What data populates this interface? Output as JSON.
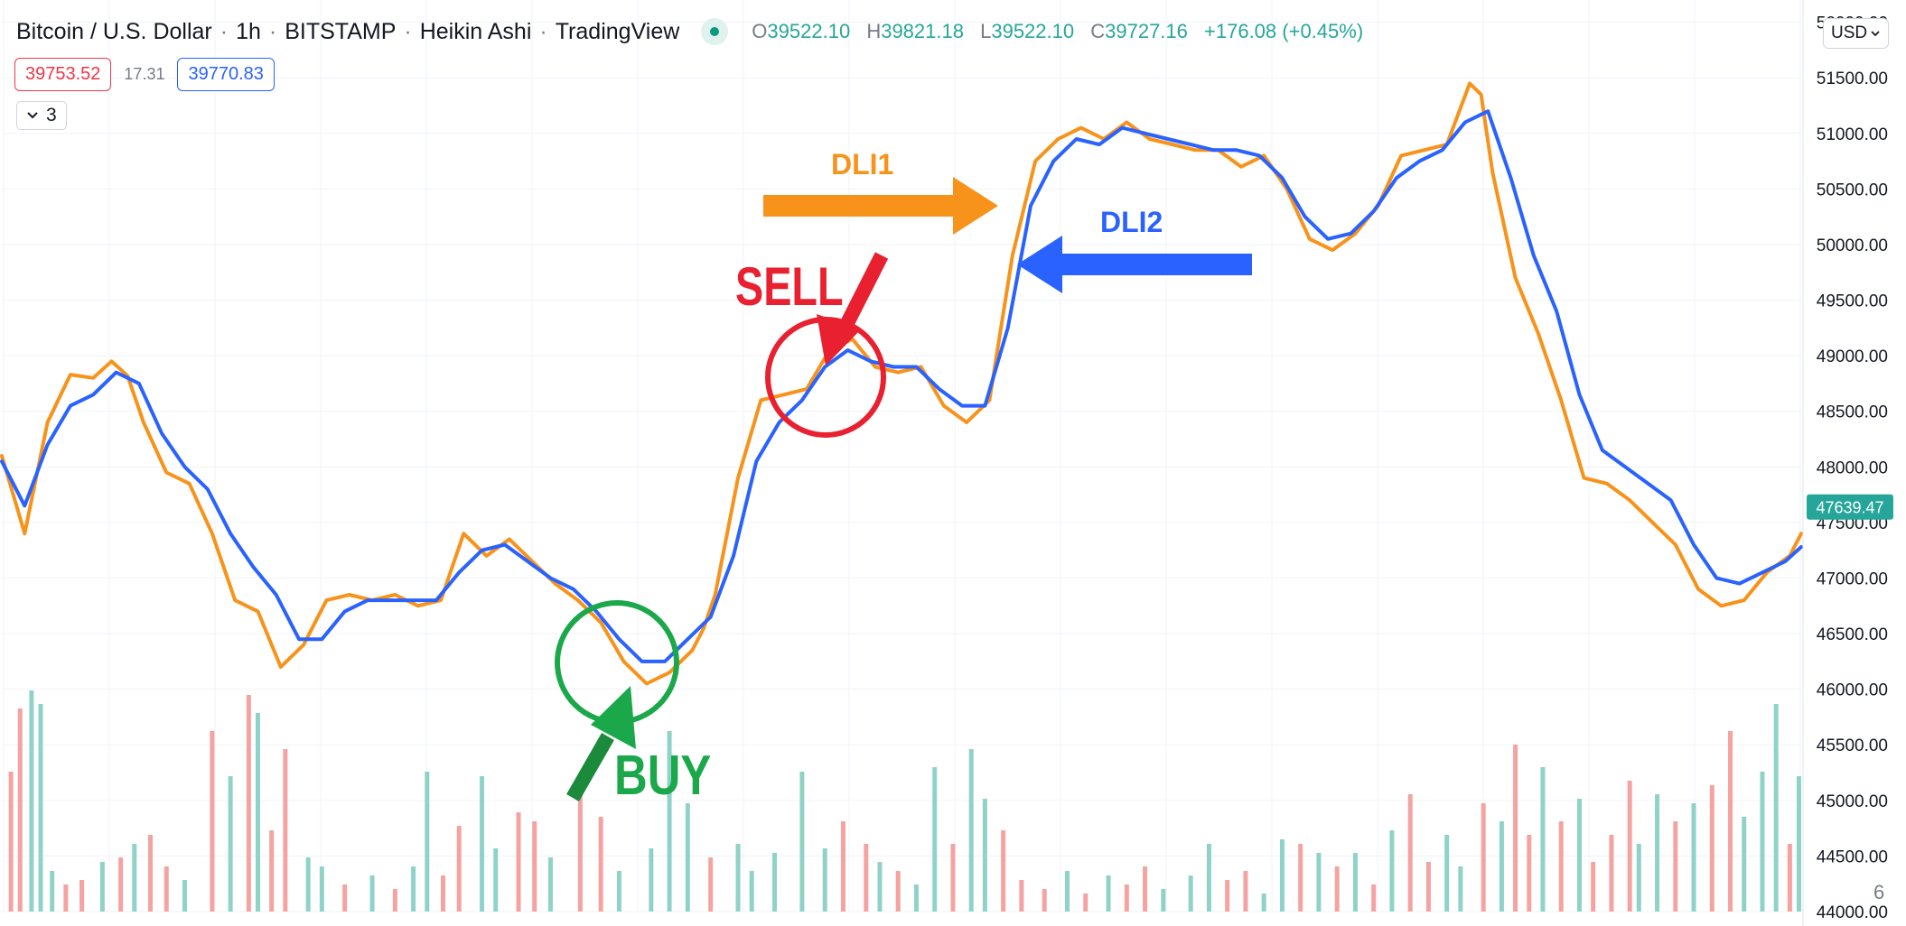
{
  "header": {
    "symbol": "Bitcoin / U.S. Dollar",
    "interval": "1h",
    "exchange": "BITSTAMP",
    "chart_style": "Heikin Ashi",
    "source": "TradingView",
    "status_icon": "live-market-dot-icon",
    "ohlc": {
      "o_label": "O",
      "o": "39522.10",
      "h_label": "H",
      "h": "39821.18",
      "l_label": "L",
      "l": "39522.10",
      "c_label": "C",
      "c": "39727.16",
      "change": "+176.08 (+0.45%)"
    }
  },
  "prices": {
    "sell": "39753.52",
    "spread": "17.31",
    "buy": "39770.83"
  },
  "indicators_toggle": {
    "count": "3",
    "icon": "chevron-down-icon"
  },
  "currency": {
    "label": "USD",
    "icon": "chevron-down-icon"
  },
  "pane_label": "6",
  "colors": {
    "dli1": "#f7931a",
    "dli2": "#2962ff",
    "current_price_bg": "#26a69a",
    "volume_up": "#8fd3c8",
    "volume_down": "#f4a3a1",
    "sell_annotation": "#e8202f",
    "buy_annotation": "#1aa84a",
    "grid": "#f0f3fa"
  },
  "chart_data": {
    "type": "line",
    "y_axis": {
      "ylim": [
        44000,
        52200
      ],
      "position": "right",
      "ticks": [
        "52000.00",
        "51500.00",
        "51000.00",
        "50500.00",
        "50000.00",
        "49500.00",
        "49000.00",
        "48500.00",
        "48000.00",
        "47500.00",
        "47000.00",
        "46500.00",
        "46000.00",
        "45500.00",
        "45000.00",
        "44500.00",
        "44000.00"
      ],
      "current_price_label": "47639.47",
      "current_price": 47639.47
    },
    "grid": true,
    "series": [
      {
        "name": "DLI1",
        "points": [
          [
            0,
            48100
          ],
          [
            10,
            47400
          ],
          [
            20,
            48400
          ],
          [
            30,
            48830
          ],
          [
            40,
            48800
          ],
          [
            48,
            48950
          ],
          [
            55,
            48820
          ],
          [
            62,
            48400
          ],
          [
            72,
            47950
          ],
          [
            82,
            47850
          ],
          [
            92,
            47400
          ],
          [
            102,
            46800
          ],
          [
            112,
            46700
          ],
          [
            122,
            46200
          ],
          [
            132,
            46400
          ],
          [
            142,
            46800
          ],
          [
            152,
            46850
          ],
          [
            162,
            46800
          ],
          [
            172,
            46850
          ],
          [
            182,
            46750
          ],
          [
            192,
            46800
          ],
          [
            202,
            47400
          ],
          [
            212,
            47200
          ],
          [
            222,
            47350
          ],
          [
            232,
            47150
          ],
          [
            242,
            46950
          ],
          [
            252,
            46800
          ],
          [
            262,
            46600
          ],
          [
            272,
            46250
          ],
          [
            282,
            46050
          ],
          [
            292,
            46150
          ],
          [
            302,
            46350
          ],
          [
            307,
            46550
          ],
          [
            312,
            46850
          ],
          [
            322,
            47900
          ],
          [
            332,
            48600
          ],
          [
            342,
            48650
          ],
          [
            352,
            48700
          ],
          [
            362,
            49050
          ],
          [
            372,
            49150
          ],
          [
            382,
            48900
          ],
          [
            392,
            48850
          ],
          [
            402,
            48900
          ],
          [
            412,
            48550
          ],
          [
            422,
            48400
          ],
          [
            432,
            48600
          ],
          [
            442,
            49900
          ],
          [
            452,
            50750
          ],
          [
            462,
            50950
          ],
          [
            472,
            51050
          ],
          [
            482,
            50950
          ],
          [
            492,
            51100
          ],
          [
            502,
            50950
          ],
          [
            512,
            50900
          ],
          [
            522,
            50850
          ],
          [
            532,
            50850
          ],
          [
            542,
            50700
          ],
          [
            552,
            50800
          ],
          [
            562,
            50500
          ],
          [
            572,
            50050
          ],
          [
            582,
            49950
          ],
          [
            592,
            50100
          ],
          [
            602,
            50350
          ],
          [
            612,
            50800
          ],
          [
            622,
            50850
          ],
          [
            632,
            50900
          ],
          [
            642,
            51450
          ],
          [
            647,
            51350
          ],
          [
            652,
            50650
          ],
          [
            662,
            49700
          ],
          [
            672,
            49200
          ],
          [
            682,
            48600
          ],
          [
            692,
            47900
          ],
          [
            702,
            47850
          ],
          [
            712,
            47700
          ],
          [
            722,
            47500
          ],
          [
            732,
            47300
          ],
          [
            742,
            46900
          ],
          [
            752,
            46750
          ],
          [
            762,
            46800
          ],
          [
            772,
            47050
          ],
          [
            782,
            47200
          ],
          [
            787,
            47400
          ]
        ]
      },
      {
        "name": "DLI2",
        "points": [
          [
            0,
            48050
          ],
          [
            10,
            47650
          ],
          [
            20,
            48200
          ],
          [
            30,
            48550
          ],
          [
            40,
            48650
          ],
          [
            50,
            48850
          ],
          [
            60,
            48750
          ],
          [
            70,
            48300
          ],
          [
            80,
            48000
          ],
          [
            90,
            47800
          ],
          [
            100,
            47400
          ],
          [
            110,
            47100
          ],
          [
            120,
            46850
          ],
          [
            130,
            46450
          ],
          [
            140,
            46450
          ],
          [
            150,
            46700
          ],
          [
            160,
            46800
          ],
          [
            170,
            46800
          ],
          [
            180,
            46800
          ],
          [
            190,
            46800
          ],
          [
            200,
            47050
          ],
          [
            210,
            47250
          ],
          [
            220,
            47300
          ],
          [
            230,
            47150
          ],
          [
            240,
            47000
          ],
          [
            250,
            46900
          ],
          [
            260,
            46700
          ],
          [
            270,
            46450
          ],
          [
            280,
            46250
          ],
          [
            290,
            46250
          ],
          [
            300,
            46450
          ],
          [
            310,
            46650
          ],
          [
            320,
            47200
          ],
          [
            330,
            48050
          ],
          [
            340,
            48400
          ],
          [
            350,
            48600
          ],
          [
            360,
            48900
          ],
          [
            370,
            49050
          ],
          [
            380,
            48950
          ],
          [
            390,
            48900
          ],
          [
            400,
            48900
          ],
          [
            410,
            48700
          ],
          [
            420,
            48550
          ],
          [
            430,
            48550
          ],
          [
            440,
            49250
          ],
          [
            450,
            50350
          ],
          [
            460,
            50750
          ],
          [
            470,
            50950
          ],
          [
            480,
            50900
          ],
          [
            490,
            51050
          ],
          [
            500,
            51000
          ],
          [
            510,
            50950
          ],
          [
            520,
            50900
          ],
          [
            530,
            50850
          ],
          [
            540,
            50850
          ],
          [
            550,
            50800
          ],
          [
            560,
            50600
          ],
          [
            570,
            50250
          ],
          [
            580,
            50050
          ],
          [
            590,
            50100
          ],
          [
            600,
            50300
          ],
          [
            610,
            50600
          ],
          [
            620,
            50750
          ],
          [
            630,
            50850
          ],
          [
            640,
            51100
          ],
          [
            650,
            51200
          ],
          [
            660,
            50600
          ],
          [
            670,
            49900
          ],
          [
            680,
            49400
          ],
          [
            690,
            48650
          ],
          [
            700,
            48150
          ],
          [
            710,
            48000
          ],
          [
            720,
            47850
          ],
          [
            730,
            47700
          ],
          [
            740,
            47300
          ],
          [
            750,
            47000
          ],
          [
            760,
            46950
          ],
          [
            770,
            47050
          ],
          [
            780,
            47150
          ],
          [
            787,
            47280
          ]
        ]
      }
    ],
    "volume": {
      "scale_max": 1.0,
      "bars": [
        [
          4,
          0.62,
          0
        ],
        [
          8,
          0.9,
          0
        ],
        [
          13,
          0.98,
          1
        ],
        [
          17,
          0.92,
          1
        ],
        [
          22,
          0.18,
          1
        ],
        [
          28,
          0.12,
          0
        ],
        [
          35,
          0.14,
          0
        ],
        [
          44,
          0.22,
          1
        ],
        [
          52,
          0.24,
          0
        ],
        [
          58,
          0.3,
          1
        ],
        [
          65,
          0.34,
          0
        ],
        [
          72,
          0.2,
          0
        ],
        [
          80,
          0.14,
          1
        ],
        [
          92,
          0.8,
          0
        ],
        [
          100,
          0.6,
          1
        ],
        [
          108,
          0.96,
          0
        ],
        [
          112,
          0.88,
          1
        ],
        [
          118,
          0.36,
          0
        ],
        [
          124,
          0.72,
          0
        ],
        [
          134,
          0.24,
          1
        ],
        [
          140,
          0.2,
          1
        ],
        [
          150,
          0.12,
          0
        ],
        [
          162,
          0.16,
          1
        ],
        [
          172,
          0.1,
          0
        ],
        [
          180,
          0.2,
          1
        ],
        [
          186,
          0.62,
          1
        ],
        [
          193,
          0.16,
          0
        ],
        [
          200,
          0.38,
          0
        ],
        [
          210,
          0.6,
          1
        ],
        [
          216,
          0.28,
          1
        ],
        [
          226,
          0.44,
          0
        ],
        [
          233,
          0.4,
          0
        ],
        [
          240,
          0.24,
          1
        ],
        [
          253,
          0.56,
          0
        ],
        [
          262,
          0.42,
          0
        ],
        [
          270,
          0.18,
          1
        ],
        [
          284,
          0.28,
          1
        ],
        [
          292,
          0.8,
          1
        ],
        [
          300,
          0.48,
          1
        ],
        [
          310,
          0.24,
          0
        ],
        [
          322,
          0.3,
          1
        ],
        [
          328,
          0.18,
          1
        ],
        [
          338,
          0.26,
          1
        ],
        [
          350,
          0.62,
          1
        ],
        [
          360,
          0.28,
          1
        ],
        [
          368,
          0.4,
          0
        ],
        [
          378,
          0.3,
          0
        ],
        [
          384,
          0.22,
          1
        ],
        [
          392,
          0.18,
          0
        ],
        [
          400,
          0.12,
          1
        ],
        [
          408,
          0.64,
          1
        ],
        [
          416,
          0.3,
          0
        ],
        [
          424,
          0.72,
          1
        ],
        [
          430,
          0.5,
          1
        ],
        [
          438,
          0.36,
          0
        ],
        [
          446,
          0.14,
          0
        ],
        [
          456,
          0.1,
          0
        ],
        [
          466,
          0.18,
          1
        ],
        [
          474,
          0.08,
          0
        ],
        [
          484,
          0.16,
          1
        ],
        [
          492,
          0.12,
          0
        ],
        [
          500,
          0.2,
          0
        ],
        [
          508,
          0.1,
          1
        ],
        [
          520,
          0.16,
          1
        ],
        [
          528,
          0.3,
          1
        ],
        [
          536,
          0.14,
          0
        ],
        [
          544,
          0.18,
          0
        ],
        [
          552,
          0.08,
          1
        ],
        [
          560,
          0.32,
          1
        ],
        [
          568,
          0.3,
          0
        ],
        [
          576,
          0.26,
          1
        ],
        [
          584,
          0.2,
          0
        ],
        [
          592,
          0.26,
          1
        ],
        [
          600,
          0.12,
          0
        ],
        [
          608,
          0.36,
          1
        ],
        [
          616,
          0.52,
          0
        ],
        [
          624,
          0.22,
          0
        ],
        [
          632,
          0.34,
          1
        ],
        [
          638,
          0.2,
          1
        ],
        [
          648,
          0.48,
          0
        ],
        [
          656,
          0.4,
          1
        ],
        [
          662,
          0.74,
          0
        ],
        [
          668,
          0.34,
          0
        ],
        [
          674,
          0.64,
          1
        ],
        [
          682,
          0.4,
          0
        ],
        [
          690,
          0.5,
          1
        ],
        [
          696,
          0.22,
          0
        ],
        [
          704,
          0.34,
          0
        ],
        [
          712,
          0.58,
          0
        ],
        [
          716,
          0.3,
          1
        ],
        [
          724,
          0.52,
          1
        ],
        [
          732,
          0.4,
          0
        ],
        [
          740,
          0.48,
          1
        ],
        [
          748,
          0.56,
          0
        ],
        [
          756,
          0.8,
          0
        ],
        [
          762,
          0.42,
          1
        ],
        [
          770,
          0.62,
          1
        ],
        [
          776,
          0.92,
          1
        ],
        [
          782,
          0.3,
          0
        ],
        [
          786,
          0.6,
          1
        ]
      ]
    },
    "annotations": [
      {
        "label": "DLI1",
        "kind": "arrow-right",
        "color": "#f7931a"
      },
      {
        "label": "DLI2",
        "kind": "arrow-left",
        "color": "#2962ff"
      },
      {
        "label": "SELL",
        "kind": "circle-arrow",
        "color": "#e8202f"
      },
      {
        "label": "BUY",
        "kind": "circle-arrow",
        "color": "#1aa84a"
      }
    ]
  }
}
